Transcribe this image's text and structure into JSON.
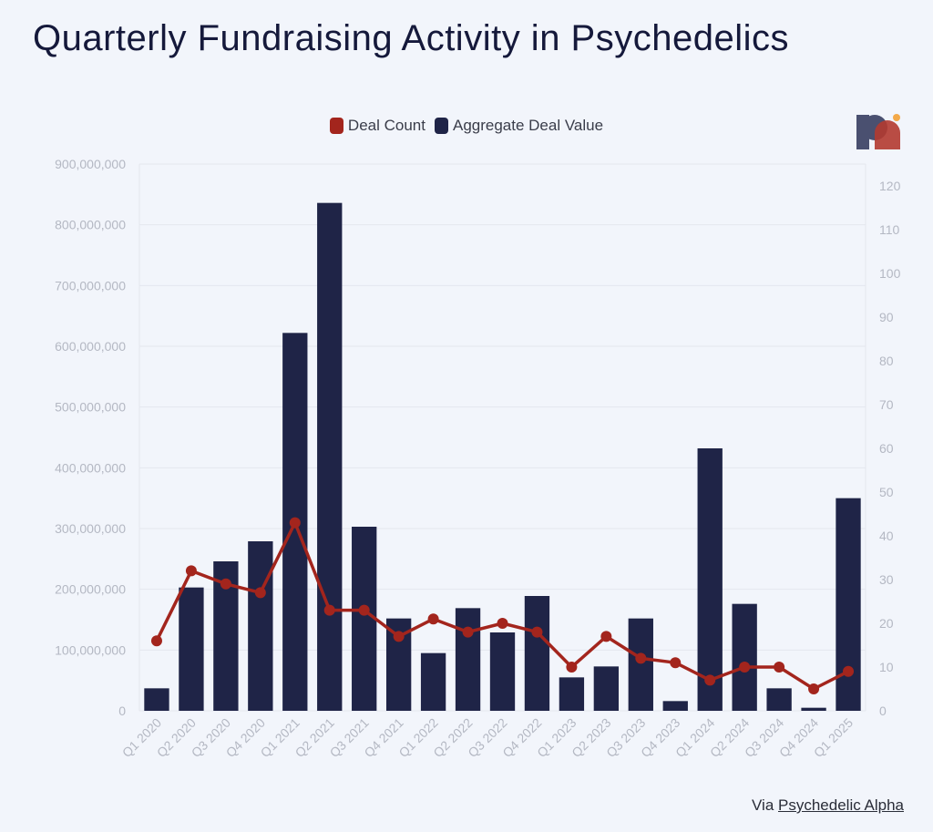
{
  "title": "Quarterly Fundraising Activity in Psychedelics",
  "legend": {
    "deal_count": "Deal Count",
    "aggregate_value": "Aggregate Deal Value"
  },
  "footer": {
    "prefix": "Via",
    "link": "Psychedelic Alpha"
  },
  "logo": {
    "icon": "psychedelic-alpha-logo-icon"
  },
  "colors": {
    "bar": "#1f2447",
    "line": "#a3251d",
    "background": "#f2f5fb",
    "grid": "#e4e7ee"
  },
  "chart_data": {
    "type": "bar",
    "categories": [
      "Q1 2020",
      "Q2 2020",
      "Q3 2020",
      "Q4 2020",
      "Q1 2021",
      "Q2 2021",
      "Q3 2021",
      "Q4 2021",
      "Q1 2022",
      "Q2 2022",
      "Q3 2022",
      "Q4 2022",
      "Q1 2023",
      "Q2 2023",
      "Q3 2023",
      "Q4 2023",
      "Q1 2024",
      "Q2 2024",
      "Q3 2024",
      "Q4 2024",
      "Q1 2025"
    ],
    "series": [
      {
        "name": "Aggregate Deal Value",
        "type": "bar",
        "axis": "left",
        "values": [
          37000000,
          203000000,
          246000000,
          279000000,
          622000000,
          836000000,
          303000000,
          152000000,
          95000000,
          169000000,
          129000000,
          189000000,
          55000000,
          73000000,
          152000000,
          16000000,
          432000000,
          176000000,
          37000000,
          5000000,
          350000000
        ]
      },
      {
        "name": "Deal Count",
        "type": "line",
        "axis": "right",
        "values": [
          16,
          32,
          29,
          27,
          43,
          23,
          23,
          17,
          21,
          18,
          20,
          18,
          10,
          17,
          12,
          11,
          7,
          10,
          10,
          5,
          9
        ]
      }
    ],
    "y_left": {
      "ylim": [
        0,
        900000000
      ],
      "ticks": [
        0,
        100000000,
        200000000,
        300000000,
        400000000,
        500000000,
        600000000,
        700000000,
        800000000,
        900000000
      ],
      "tick_labels": [
        "0",
        "100,000,000",
        "200,000,000",
        "300,000,000",
        "400,000,000",
        "500,000,000",
        "600,000,000",
        "700,000,000",
        "800,000,000",
        "900,000,000"
      ]
    },
    "y_right": {
      "ylim": [
        0,
        125
      ],
      "ticks": [
        0,
        10,
        20,
        30,
        40,
        50,
        60,
        70,
        80,
        90,
        100,
        110,
        120
      ],
      "tick_labels": [
        "0",
        "10",
        "20",
        "30",
        "40",
        "50",
        "60",
        "70",
        "80",
        "90",
        "100",
        "110",
        "120"
      ]
    },
    "grid": true,
    "legend_position": "top-center"
  }
}
